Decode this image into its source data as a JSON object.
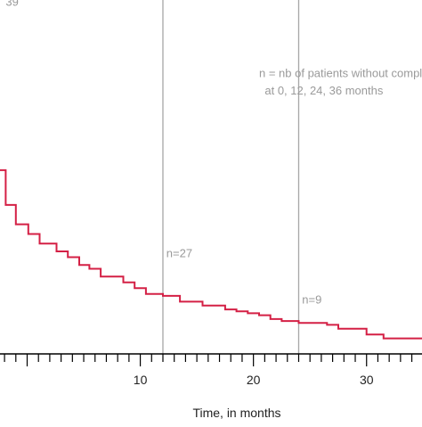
{
  "chart_data": {
    "type": "line",
    "step": true,
    "xlabel": "Time, in months",
    "ylabel": "",
    "xlim": [
      -2.4,
      34.9
    ],
    "ylim": [
      0,
      1
    ],
    "xticks": [
      10,
      20,
      30
    ],
    "minor_tick_step": 1,
    "series": [
      {
        "color": "#d42045",
        "points": [
          [
            -2.4,
            0.95
          ],
          [
            -1.9,
            0.95
          ],
          [
            -1.9,
            0.77
          ],
          [
            -1.0,
            0.77
          ],
          [
            -1.0,
            0.67
          ],
          [
            0.1,
            0.67
          ],
          [
            0.1,
            0.62
          ],
          [
            1.1,
            0.62
          ],
          [
            1.1,
            0.57
          ],
          [
            2.6,
            0.57
          ],
          [
            2.6,
            0.53
          ],
          [
            3.6,
            0.53
          ],
          [
            3.6,
            0.5
          ],
          [
            4.6,
            0.5
          ],
          [
            4.6,
            0.46
          ],
          [
            5.5,
            0.46
          ],
          [
            5.5,
            0.44
          ],
          [
            6.5,
            0.44
          ],
          [
            6.5,
            0.4
          ],
          [
            8.5,
            0.4
          ],
          [
            8.5,
            0.37
          ],
          [
            9.5,
            0.37
          ],
          [
            9.5,
            0.34
          ],
          [
            10.5,
            0.34
          ],
          [
            10.5,
            0.31
          ],
          [
            12.0,
            0.31
          ],
          [
            12.0,
            0.3
          ],
          [
            13.5,
            0.3
          ],
          [
            13.5,
            0.27
          ],
          [
            15.5,
            0.27
          ],
          [
            15.5,
            0.25
          ],
          [
            17.5,
            0.25
          ],
          [
            17.5,
            0.23
          ],
          [
            18.5,
            0.23
          ],
          [
            18.5,
            0.22
          ],
          [
            19.5,
            0.22
          ],
          [
            19.5,
            0.21
          ],
          [
            20.5,
            0.21
          ],
          [
            20.5,
            0.2
          ],
          [
            21.5,
            0.2
          ],
          [
            21.5,
            0.18
          ],
          [
            22.5,
            0.18
          ],
          [
            22.5,
            0.17
          ],
          [
            24.0,
            0.17
          ],
          [
            24.0,
            0.16
          ],
          [
            26.5,
            0.16
          ],
          [
            26.5,
            0.15
          ],
          [
            27.5,
            0.15
          ],
          [
            27.5,
            0.13
          ],
          [
            30.0,
            0.13
          ],
          [
            30.0,
            0.1
          ],
          [
            31.5,
            0.1
          ],
          [
            31.5,
            0.08
          ],
          [
            34.9,
            0.08
          ]
        ]
      }
    ],
    "reference_lines_x": [
      12,
      24
    ],
    "annotations": [
      {
        "text": "39",
        "x": -1.9,
        "y": 1.8
      },
      {
        "text": "n=27",
        "x": 12.3,
        "y": 0.5
      },
      {
        "text": "n=9",
        "x": 24.3,
        "y": 0.26
      },
      {
        "text": "n = nb of patients without complication",
        "x": 20.5,
        "y": 1.43
      },
      {
        "text": "at 0, 12, 24, 36 months",
        "x": 21.0,
        "y": 1.34
      }
    ],
    "colors": {
      "curve": "#d42045",
      "reference_line": "#a6a6a6",
      "annotation": "#9a9a9a",
      "axis": "#000000"
    },
    "grid": false,
    "legend": "none"
  }
}
